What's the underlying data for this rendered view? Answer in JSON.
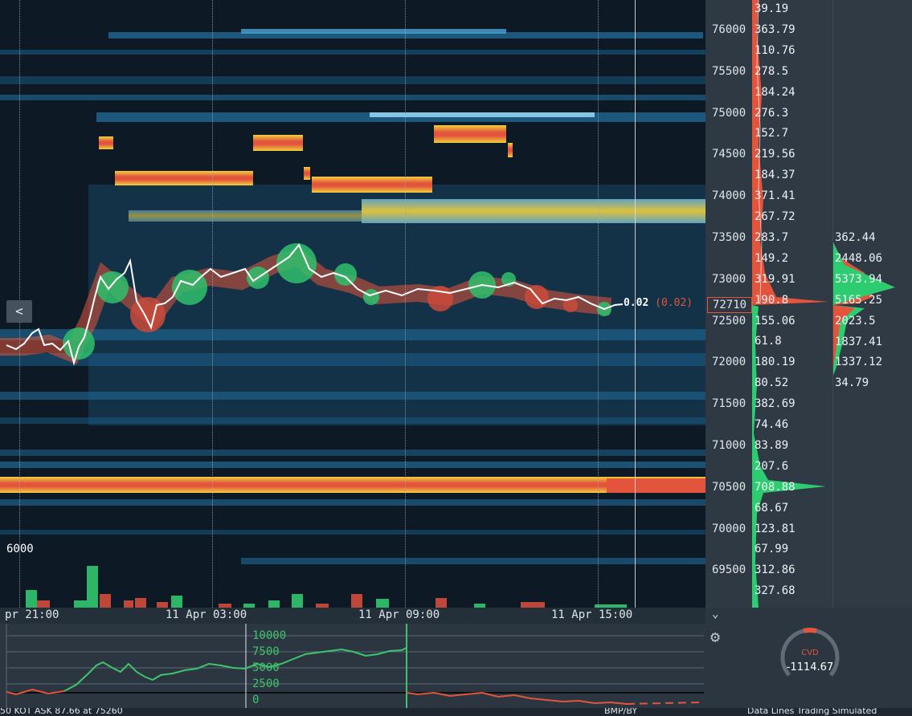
{
  "price_ticks": [
    "76000",
    "75500",
    "75000",
    "74500",
    "74000",
    "73500",
    "73000",
    "72500",
    "72000",
    "71500",
    "71000",
    "70500",
    "70000",
    "69500"
  ],
  "current_price": "72710",
  "current_label": {
    "value": "0.02",
    "paren": "(0.02)"
  },
  "volume_labels": [
    "39.19",
    "363.79",
    "110.76",
    "278.5",
    "184.24",
    "276.3",
    "152.7",
    "219.56",
    "184.37",
    "371.41",
    "267.72",
    "283.7",
    "149.2",
    "319.91",
    "190.8",
    "155.06",
    "61.8",
    "180.19",
    "80.52",
    "382.69",
    "74.46",
    "83.89",
    "207.6",
    "708.88",
    "68.67",
    "123.81",
    "67.99",
    "312.86",
    "327.68"
  ],
  "session_volume_labels": [
    "362.44",
    "2448.06",
    "5373.94",
    "5165.25",
    "2023.5",
    "1837.41",
    "1337.12",
    "34.79"
  ],
  "volume_axis_label": "6000",
  "time_labels": [
    "pr 21:00",
    "11 Apr 03:00",
    "11 Apr 09:00",
    "11 Apr 15:00"
  ],
  "cvd_axis_labels": [
    "10000",
    "7500",
    "5000",
    "2500",
    "0"
  ],
  "cvd_widget": {
    "label": "CVD",
    "value": "-1114.67"
  },
  "collapse_button": "<",
  "chevron": "⌄",
  "gear": "⚙",
  "bottom_bar": {
    "left": "50 KOT   ASK   87.66 at 75260",
    "middle": "BMP/BY",
    "right": "Data Lines   Trading Simulated"
  },
  "colors": {
    "bid": "#e2553c",
    "ask": "#2ecc71",
    "heat_low": "#1f5f86",
    "heat_high": "#f2d03b",
    "background": "#0d1a26"
  }
}
